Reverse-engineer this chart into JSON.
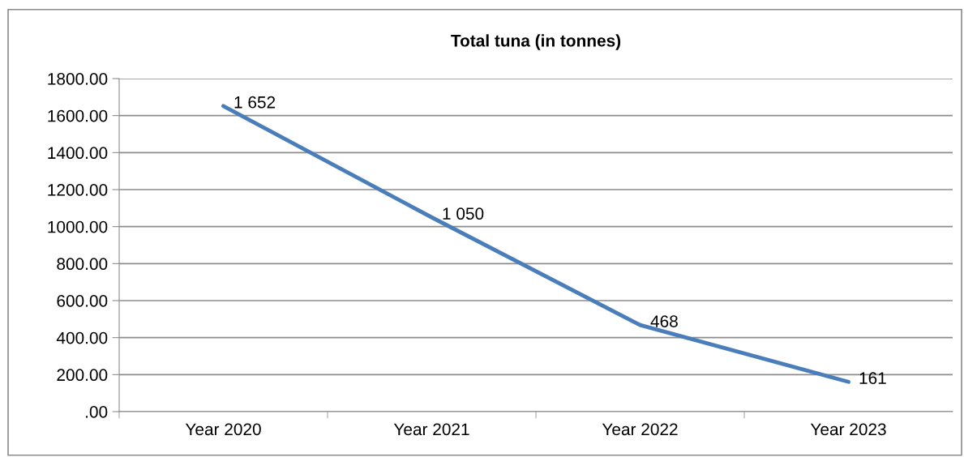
{
  "chart_data": {
    "type": "line",
    "title": "Total tuna (in tonnes)",
    "categories": [
      "Year 2020",
      "Year 2021",
      "Year 2022",
      "Year 2023"
    ],
    "series": [
      {
        "color": "#4a7ebb",
        "values": [
          1652,
          1050,
          468,
          161
        ]
      }
    ],
    "value_labels": [
      "1 652",
      "1 050",
      "468",
      "161"
    ],
    "ylim": [
      0,
      1800
    ],
    "yticks": [
      {
        "value": 0,
        "label": ".00"
      },
      {
        "value": 200,
        "label": "200.00"
      },
      {
        "value": 400,
        "label": "400.00"
      },
      {
        "value": 600,
        "label": "600.00"
      },
      {
        "value": 800,
        "label": "800.00"
      },
      {
        "value": 1000,
        "label": "1000.00"
      },
      {
        "value": 1200,
        "label": "1200.00"
      },
      {
        "value": 1400,
        "label": "1400.00"
      },
      {
        "value": 1600,
        "label": "1600.00"
      },
      {
        "value": 1800,
        "label": "1800.00"
      }
    ],
    "grid": "y",
    "marker": "none",
    "line_style": "solid",
    "legend": false
  }
}
